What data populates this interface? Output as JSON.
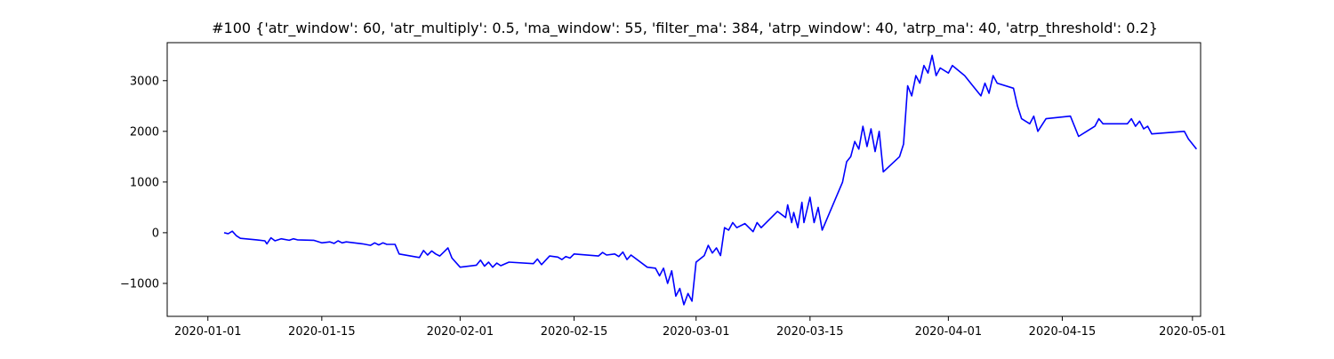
{
  "chart_data": {
    "type": "line",
    "title": "#100 {'atr_window': 60, 'atr_multiply': 0.5, 'ma_window': 55, 'filter_ma': 384, 'atrp_window': 40, 'atrp_ma': 40, 'atrp_threshold': 0.2}",
    "xlabel": "",
    "ylabel": "",
    "x_ticks": [
      "2020-01-01",
      "2020-01-15",
      "2020-02-01",
      "2020-02-15",
      "2020-03-01",
      "2020-03-15",
      "2020-04-01",
      "2020-04-15",
      "2020-05-01"
    ],
    "y_ticks": [
      -1000,
      0,
      1000,
      2000,
      3000
    ],
    "xlim": [
      "2019-12-27",
      "2020-05-02"
    ],
    "ylim": [
      -1650,
      3750
    ],
    "grid": false,
    "line_color": "#0000ff",
    "series": [
      {
        "points": [
          [
            "2020-01-03",
            0
          ],
          [
            "2020-01-03 12:00",
            -20
          ],
          [
            "2020-01-04",
            30
          ],
          [
            "2020-01-04 12:00",
            -60
          ],
          [
            "2020-01-05",
            -110
          ],
          [
            "2020-01-07",
            -140
          ],
          [
            "2020-01-08",
            -160
          ],
          [
            "2020-01-08 06:00",
            -220
          ],
          [
            "2020-01-08 18:00",
            -100
          ],
          [
            "2020-01-09 06:00",
            -160
          ],
          [
            "2020-01-10",
            -120
          ],
          [
            "2020-01-11",
            -150
          ],
          [
            "2020-01-11 12:00",
            -120
          ],
          [
            "2020-01-12",
            -140
          ],
          [
            "2020-01-14",
            -150
          ],
          [
            "2020-01-15",
            -200
          ],
          [
            "2020-01-16",
            -180
          ],
          [
            "2020-01-16 12:00",
            -210
          ],
          [
            "2020-01-17",
            -160
          ],
          [
            "2020-01-17 12:00",
            -200
          ],
          [
            "2020-01-18",
            -180
          ],
          [
            "2020-01-20",
            -220
          ],
          [
            "2020-01-21",
            -250
          ],
          [
            "2020-01-21 12:00",
            -200
          ],
          [
            "2020-01-22",
            -240
          ],
          [
            "2020-01-22 12:00",
            -200
          ],
          [
            "2020-01-23",
            -230
          ],
          [
            "2020-01-24",
            -230
          ],
          [
            "2020-01-24 12:00",
            -420
          ],
          [
            "2020-01-27",
            -490
          ],
          [
            "2020-01-27 12:00",
            -350
          ],
          [
            "2020-01-28",
            -440
          ],
          [
            "2020-01-28 12:00",
            -360
          ],
          [
            "2020-01-29",
            -420
          ],
          [
            "2020-01-29 12:00",
            -460
          ],
          [
            "2020-01-30",
            -380
          ],
          [
            "2020-01-30 12:00",
            -300
          ],
          [
            "2020-01-31",
            -500
          ],
          [
            "2020-02-01",
            -680
          ],
          [
            "2020-02-03",
            -640
          ],
          [
            "2020-02-03 12:00",
            -540
          ],
          [
            "2020-02-04",
            -660
          ],
          [
            "2020-02-04 12:00",
            -580
          ],
          [
            "2020-02-05",
            -680
          ],
          [
            "2020-02-05 12:00",
            -600
          ],
          [
            "2020-02-06",
            -650
          ],
          [
            "2020-02-07",
            -580
          ],
          [
            "2020-02-10",
            -610
          ],
          [
            "2020-02-10 12:00",
            -520
          ],
          [
            "2020-02-11",
            -630
          ],
          [
            "2020-02-12",
            -460
          ],
          [
            "2020-02-13",
            -480
          ],
          [
            "2020-02-13 12:00",
            -530
          ],
          [
            "2020-02-14",
            -470
          ],
          [
            "2020-02-14 12:00",
            -500
          ],
          [
            "2020-02-15",
            -420
          ],
          [
            "2020-02-18",
            -460
          ],
          [
            "2020-02-18 12:00",
            -390
          ],
          [
            "2020-02-19",
            -440
          ],
          [
            "2020-02-20",
            -420
          ],
          [
            "2020-02-20 12:00",
            -470
          ],
          [
            "2020-02-21",
            -380
          ],
          [
            "2020-02-21 12:00",
            -530
          ],
          [
            "2020-02-22",
            -440
          ],
          [
            "2020-02-24",
            -680
          ],
          [
            "2020-02-25",
            -700
          ],
          [
            "2020-02-25 12:00",
            -850
          ],
          [
            "2020-02-26",
            -700
          ],
          [
            "2020-02-26 12:00",
            -1000
          ],
          [
            "2020-02-27",
            -750
          ],
          [
            "2020-02-27 12:00",
            -1250
          ],
          [
            "2020-02-28",
            -1100
          ],
          [
            "2020-02-28 12:00",
            -1420
          ],
          [
            "2020-02-29",
            -1200
          ],
          [
            "2020-02-29 12:00",
            -1350
          ],
          [
            "2020-03-01",
            -580
          ],
          [
            "2020-03-02",
            -450
          ],
          [
            "2020-03-02 12:00",
            -250
          ],
          [
            "2020-03-03",
            -400
          ],
          [
            "2020-03-03 12:00",
            -300
          ],
          [
            "2020-03-04",
            -450
          ],
          [
            "2020-03-04 12:00",
            100
          ],
          [
            "2020-03-05",
            50
          ],
          [
            "2020-03-05 12:00",
            200
          ],
          [
            "2020-03-06",
            100
          ],
          [
            "2020-03-07",
            180
          ],
          [
            "2020-03-08",
            20
          ],
          [
            "2020-03-08 12:00",
            200
          ],
          [
            "2020-03-09",
            100
          ],
          [
            "2020-03-11",
            420
          ],
          [
            "2020-03-12",
            300
          ],
          [
            "2020-03-12 06:00",
            550
          ],
          [
            "2020-03-12 18:00",
            200
          ],
          [
            "2020-03-13",
            400
          ],
          [
            "2020-03-13 12:00",
            100
          ],
          [
            "2020-03-14",
            600
          ],
          [
            "2020-03-14 06:00",
            200
          ],
          [
            "2020-03-15",
            700
          ],
          [
            "2020-03-15 12:00",
            200
          ],
          [
            "2020-03-16",
            500
          ],
          [
            "2020-03-16 12:00",
            50
          ],
          [
            "2020-03-19",
            1000
          ],
          [
            "2020-03-19 12:00",
            1400
          ],
          [
            "2020-03-20",
            1500
          ],
          [
            "2020-03-20 12:00",
            1800
          ],
          [
            "2020-03-21",
            1650
          ],
          [
            "2020-03-21 12:00",
            2100
          ],
          [
            "2020-03-22",
            1700
          ],
          [
            "2020-03-22 12:00",
            2050
          ],
          [
            "2020-03-23",
            1600
          ],
          [
            "2020-03-23 12:00",
            2000
          ],
          [
            "2020-03-24",
            1200
          ],
          [
            "2020-03-26",
            1500
          ],
          [
            "2020-03-26 12:00",
            1750
          ],
          [
            "2020-03-27",
            2900
          ],
          [
            "2020-03-27 12:00",
            2700
          ],
          [
            "2020-03-28",
            3100
          ],
          [
            "2020-03-28 12:00",
            2950
          ],
          [
            "2020-03-29",
            3300
          ],
          [
            "2020-03-29 12:00",
            3150
          ],
          [
            "2020-03-30",
            3500
          ],
          [
            "2020-03-30 12:00",
            3100
          ],
          [
            "2020-03-31",
            3250
          ],
          [
            "2020-04-01",
            3150
          ],
          [
            "2020-04-01 12:00",
            3300
          ],
          [
            "2020-04-03",
            3100
          ],
          [
            "2020-04-04",
            2900
          ],
          [
            "2020-04-05",
            2700
          ],
          [
            "2020-04-05 12:00",
            2950
          ],
          [
            "2020-04-06",
            2750
          ],
          [
            "2020-04-06 12:00",
            3100
          ],
          [
            "2020-04-07",
            2950
          ],
          [
            "2020-04-09",
            2850
          ],
          [
            "2020-04-09 12:00",
            2500
          ],
          [
            "2020-04-10",
            2250
          ],
          [
            "2020-04-11",
            2150
          ],
          [
            "2020-04-11 12:00",
            2300
          ],
          [
            "2020-04-12",
            2000
          ],
          [
            "2020-04-13",
            2250
          ],
          [
            "2020-04-16",
            2300
          ],
          [
            "2020-04-16 12:00",
            2100
          ],
          [
            "2020-04-17",
            1900
          ],
          [
            "2020-04-18",
            2000
          ],
          [
            "2020-04-19",
            2100
          ],
          [
            "2020-04-19 12:00",
            2250
          ],
          [
            "2020-04-20",
            2150
          ],
          [
            "2020-04-23",
            2150
          ],
          [
            "2020-04-23 12:00",
            2250
          ],
          [
            "2020-04-24",
            2100
          ],
          [
            "2020-04-24 12:00",
            2200
          ],
          [
            "2020-04-25",
            2050
          ],
          [
            "2020-04-25 12:00",
            2100
          ],
          [
            "2020-04-26",
            1950
          ],
          [
            "2020-04-30",
            2000
          ],
          [
            "2020-04-30 12:00",
            1850
          ],
          [
            "2020-05-01",
            1750
          ],
          [
            "2020-05-01 12:00",
            1650
          ]
        ]
      }
    ]
  }
}
